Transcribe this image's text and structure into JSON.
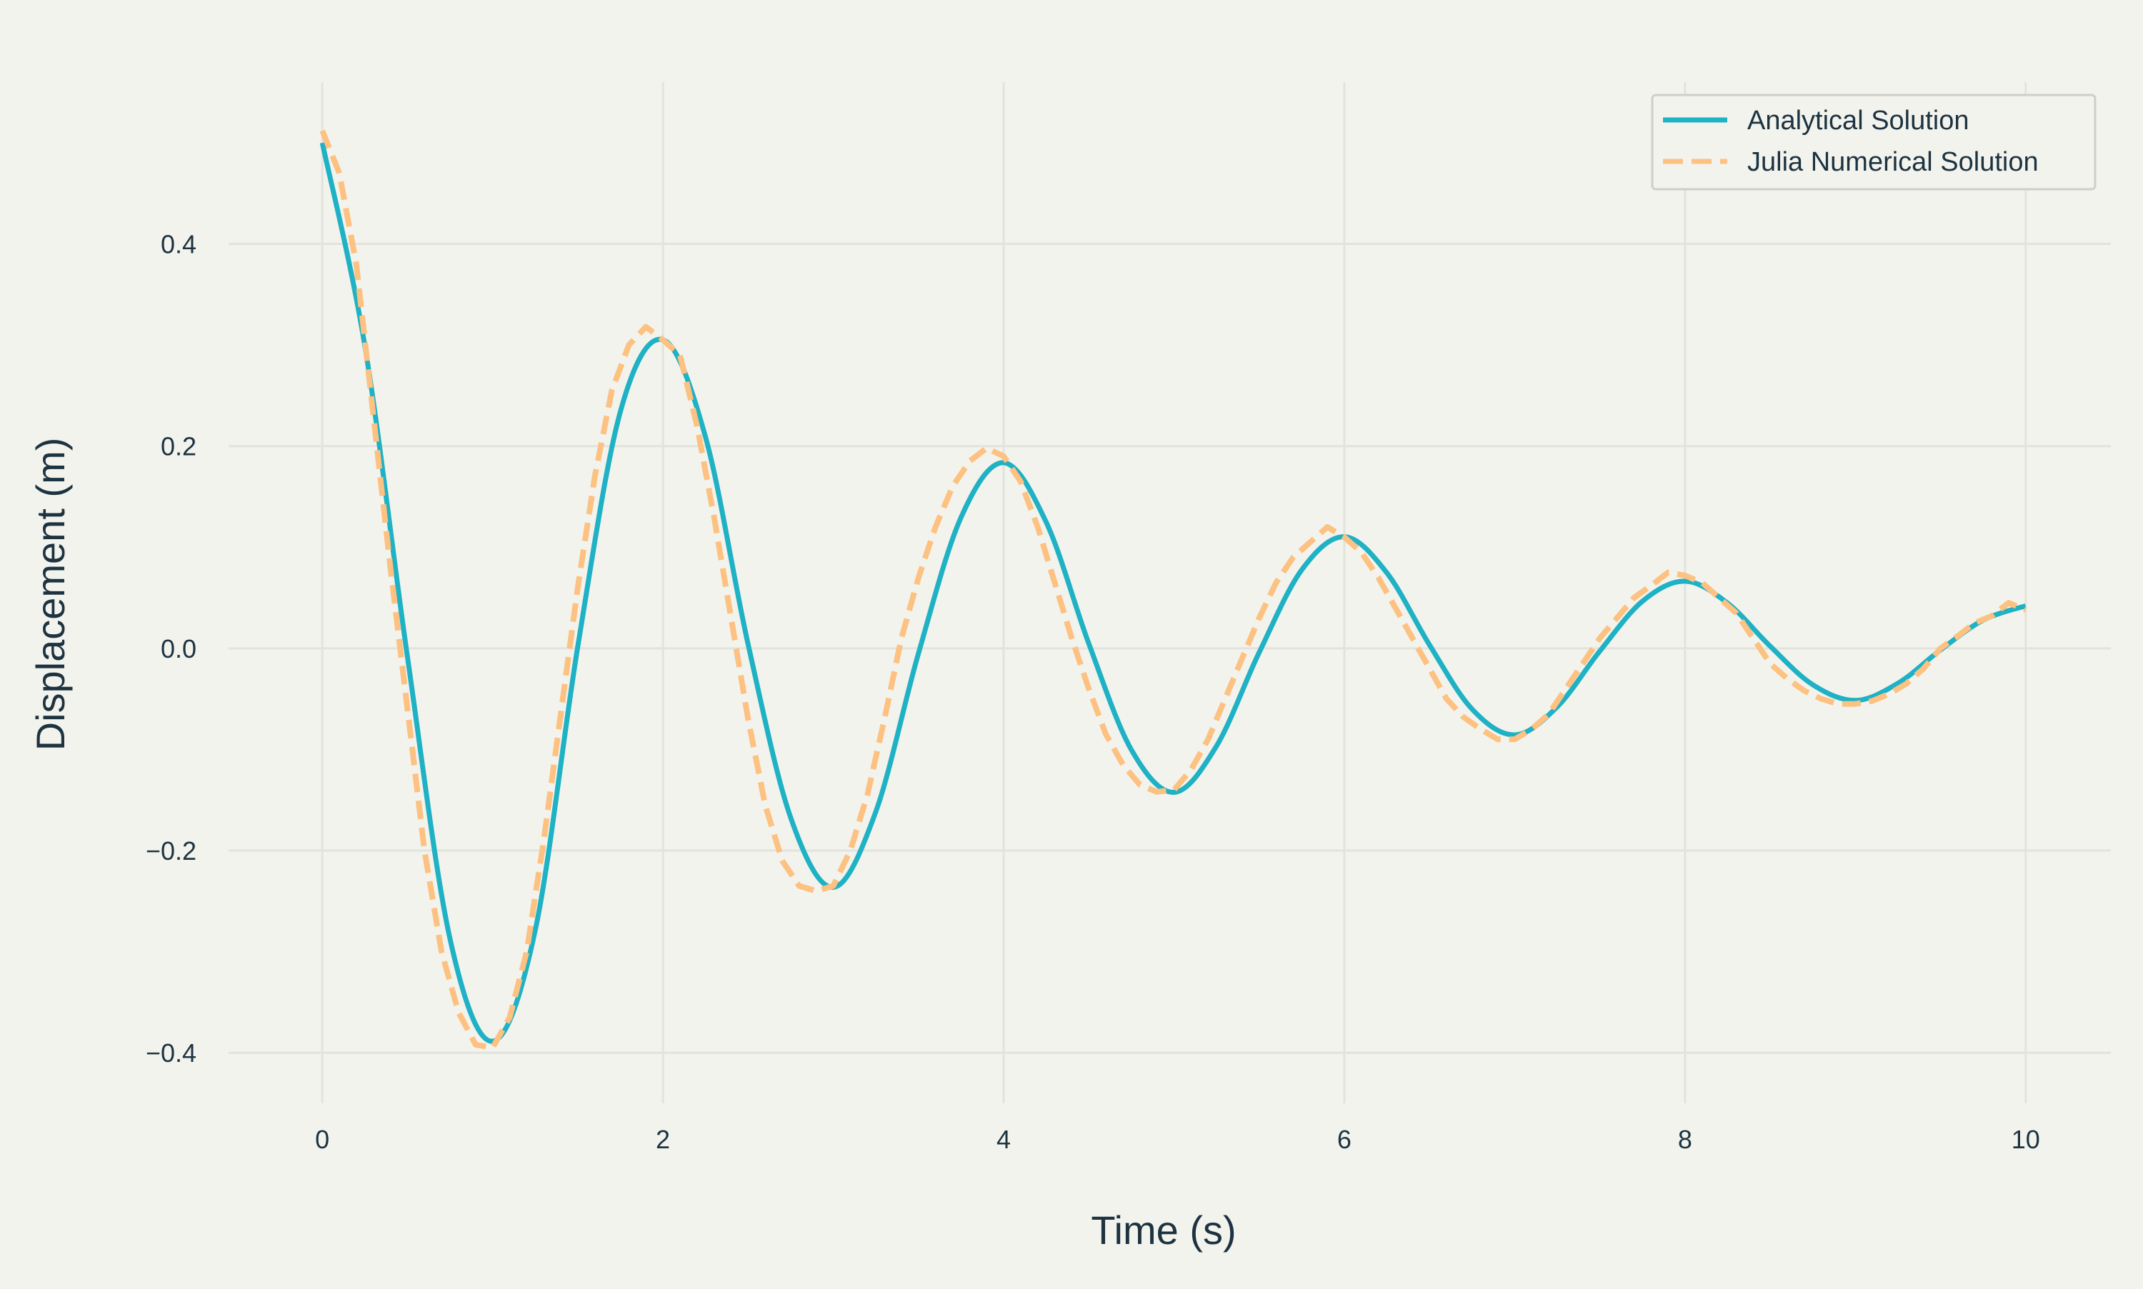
{
  "chart_data": {
    "type": "line",
    "title": "",
    "xlabel": "Time (s)",
    "ylabel": "Displacement (m)",
    "xlim": [
      -0.55,
      10.5
    ],
    "ylim": [
      -0.45,
      0.56
    ],
    "xticks": [
      0,
      2,
      4,
      6,
      8,
      10
    ],
    "xtick_labels": [
      "0",
      "2",
      "4",
      "6",
      "8",
      "10"
    ],
    "yticks": [
      -0.4,
      -0.2,
      0.0,
      0.2,
      0.4
    ],
    "ytick_labels": [
      "−0.4",
      "−0.2",
      "0.0",
      "0.2",
      "0.4"
    ],
    "grid": true,
    "legend": {
      "position": "top-right",
      "entries": [
        "Analytical Solution",
        "Julia Numerical Solution"
      ]
    },
    "series": [
      {
        "name": "Analytical Solution",
        "color": "#1fb1c4",
        "style": "solid",
        "x": [
          0.0,
          0.25,
          0.5,
          0.75,
          1.0,
          1.25,
          1.5,
          1.75,
          2.0,
          2.25,
          2.5,
          2.75,
          3.0,
          3.25,
          3.5,
          3.75,
          4.0,
          4.25,
          4.5,
          4.75,
          5.0,
          5.25,
          5.5,
          5.75,
          6.0,
          6.25,
          6.5,
          6.75,
          7.0,
          7.25,
          7.5,
          7.75,
          8.0,
          8.25,
          8.5,
          8.75,
          9.0,
          9.25,
          9.5,
          9.75,
          10.0
        ],
        "y": [
          0.5,
          0.299,
          -0.0085,
          -0.2874,
          -0.3886,
          -0.279,
          0.0017,
          0.2342,
          0.3052,
          0.2088,
          0.0039,
          -0.1675,
          -0.2363,
          -0.1613,
          -0.0049,
          0.1296,
          0.1836,
          0.1247,
          0.0047,
          -0.1003,
          -0.1424,
          -0.0965,
          -0.0041,
          0.0776,
          0.1104,
          0.0746,
          0.0034,
          -0.0601,
          -0.0856,
          -0.0578,
          -0.0027,
          0.0465,
          0.0664,
          0.0447,
          0.0021,
          -0.036,
          -0.0515,
          -0.0346,
          -0.0016,
          0.0279,
          0.042
        ]
      },
      {
        "name": "Julia Numerical Solution",
        "color": "#fdc181",
        "style": "dashed",
        "x": [
          0.0,
          0.1,
          0.2,
          0.3,
          0.4,
          0.5,
          0.6,
          0.7,
          0.8,
          0.9,
          1.0,
          1.1,
          1.2,
          1.3,
          1.4,
          1.5,
          1.6,
          1.7,
          1.8,
          1.9,
          2.0,
          2.1,
          2.2,
          2.3,
          2.4,
          2.5,
          2.6,
          2.7,
          2.8,
          2.9,
          3.0,
          3.1,
          3.2,
          3.3,
          3.4,
          3.5,
          3.6,
          3.7,
          3.8,
          3.9,
          4.0,
          4.1,
          4.2,
          4.3,
          4.4,
          4.5,
          4.6,
          4.7,
          4.8,
          4.9,
          5.0,
          5.1,
          5.2,
          5.3,
          5.4,
          5.5,
          5.6,
          5.7,
          5.8,
          5.9,
          6.0,
          6.1,
          6.2,
          6.3,
          6.4,
          6.5,
          6.6,
          6.7,
          6.8,
          6.9,
          7.0,
          7.1,
          7.2,
          7.3,
          7.4,
          7.5,
          7.6,
          7.7,
          7.8,
          7.9,
          8.0,
          8.1,
          8.2,
          8.3,
          8.4,
          8.5,
          8.6,
          8.7,
          8.8,
          8.9,
          9.0,
          9.1,
          9.2,
          9.3,
          9.4,
          9.5,
          9.6,
          9.7,
          9.8,
          9.9,
          10.0
        ],
        "y": [
          0.512,
          0.47,
          0.38,
          0.23,
          0.08,
          -0.06,
          -0.2,
          -0.3,
          -0.36,
          -0.392,
          -0.395,
          -0.365,
          -0.3,
          -0.19,
          -0.065,
          0.06,
          0.17,
          0.255,
          0.3,
          0.318,
          0.305,
          0.29,
          0.22,
          0.13,
          0.03,
          -0.07,
          -0.155,
          -0.21,
          -0.235,
          -0.24,
          -0.235,
          -0.2,
          -0.145,
          -0.07,
          0.01,
          0.07,
          0.12,
          0.16,
          0.185,
          0.198,
          0.19,
          0.165,
          0.12,
          0.065,
          0.01,
          -0.04,
          -0.085,
          -0.115,
          -0.135,
          -0.142,
          -0.14,
          -0.12,
          -0.09,
          -0.05,
          -0.01,
          0.03,
          0.065,
          0.09,
          0.105,
          0.12,
          0.11,
          0.095,
          0.07,
          0.04,
          0.01,
          -0.02,
          -0.05,
          -0.068,
          -0.08,
          -0.09,
          -0.09,
          -0.08,
          -0.065,
          -0.04,
          -0.015,
          0.01,
          0.03,
          0.05,
          0.062,
          0.075,
          0.072,
          0.065,
          0.05,
          0.035,
          0.01,
          -0.015,
          -0.03,
          -0.042,
          -0.05,
          -0.055,
          -0.055,
          -0.052,
          -0.045,
          -0.035,
          -0.02,
          0.0,
          0.012,
          0.025,
          0.032,
          0.045,
          0.038
        ]
      }
    ]
  }
}
